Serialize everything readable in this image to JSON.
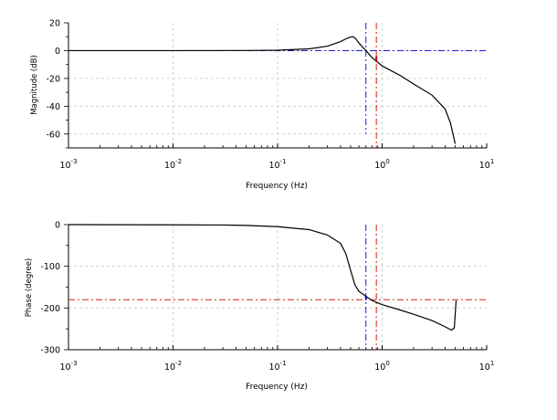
{
  "chart_data": [
    {
      "type": "line",
      "xscale": "log",
      "xlim": [
        0.001,
        10
      ],
      "ylim": [
        -70,
        20
      ],
      "xlabel": "Frequency (Hz)",
      "ylabel": "Magnitude (dB)",
      "grid": true,
      "x_ticks": [
        {
          "base": "10",
          "exp": "-3"
        },
        {
          "base": "10",
          "exp": "-2"
        },
        {
          "base": "10",
          "exp": "-1"
        },
        {
          "base": "10",
          "exp": "0"
        },
        {
          "base": "10",
          "exp": "1"
        }
      ],
      "y_ticks": [
        {
          "value": 20,
          "label": "20"
        },
        {
          "value": 0,
          "label": "0"
        },
        {
          "value": -20,
          "label": "-20"
        },
        {
          "value": -40,
          "label": "-40"
        },
        {
          "value": -60,
          "label": "-60"
        }
      ],
      "series": [
        {
          "color": "#000000",
          "points": [
            [
              0.001,
              0
            ],
            [
              0.01,
              0
            ],
            [
              0.05,
              0.1
            ],
            [
              0.1,
              0.3
            ],
            [
              0.2,
              1.3
            ],
            [
              0.3,
              3.2
            ],
            [
              0.4,
              6.5
            ],
            [
              0.45,
              8.5
            ],
            [
              0.5,
              9.8
            ],
            [
              0.53,
              10
            ],
            [
              0.56,
              8.5
            ],
            [
              0.6,
              5.5
            ],
            [
              0.65,
              2.5
            ],
            [
              0.7,
              0
            ],
            [
              0.8,
              -5
            ],
            [
              1,
              -11
            ],
            [
              1.5,
              -18
            ],
            [
              2,
              -24
            ],
            [
              3,
              -32
            ],
            [
              4,
              -42
            ],
            [
              4.5,
              -52
            ],
            [
              5,
              -67
            ]
          ]
        }
      ],
      "reference_lines": [
        {
          "orientation": "horizontal",
          "value": 0,
          "color": "#0000cc",
          "style": "dash-dot"
        },
        {
          "orientation": "vertical",
          "value": 0.7,
          "color": "#0000cc",
          "style": "dash-dot",
          "span": [
            -60,
            20
          ]
        },
        {
          "orientation": "vertical",
          "value": 0.88,
          "color": "#cc0000",
          "style": "dash-dot",
          "span": [
            -70,
            20
          ]
        }
      ],
      "margin_markers": [
        {
          "x": 0.88,
          "y_from": -4,
          "y_to": -8,
          "color": "#cc0000"
        }
      ]
    },
    {
      "type": "line",
      "xscale": "log",
      "xlim": [
        0.001,
        10
      ],
      "ylim": [
        -300,
        0
      ],
      "xlabel": "Frequency (Hz)",
      "ylabel": "Phase (degree)",
      "grid": true,
      "x_ticks": [
        {
          "base": "10",
          "exp": "-3"
        },
        {
          "base": "10",
          "exp": "-2"
        },
        {
          "base": "10",
          "exp": "-1"
        },
        {
          "base": "10",
          "exp": "0"
        },
        {
          "base": "10",
          "exp": "1"
        }
      ],
      "y_ticks": [
        {
          "value": 0,
          "label": "0"
        },
        {
          "value": -100,
          "label": "-100"
        },
        {
          "value": -200,
          "label": "-200"
        },
        {
          "value": -300,
          "label": "-300"
        }
      ],
      "series": [
        {
          "color": "#000000",
          "points": [
            [
              0.001,
              0
            ],
            [
              0.01,
              -0.5
            ],
            [
              0.03,
              -1
            ],
            [
              0.05,
              -2
            ],
            [
              0.1,
              -5
            ],
            [
              0.2,
              -12
            ],
            [
              0.3,
              -25
            ],
            [
              0.4,
              -45
            ],
            [
              0.45,
              -70
            ],
            [
              0.5,
              -110
            ],
            [
              0.55,
              -145
            ],
            [
              0.6,
              -160
            ],
            [
              0.7,
              -172
            ],
            [
              0.8,
              -182
            ],
            [
              1,
              -192
            ],
            [
              1.5,
              -205
            ],
            [
              2,
              -215
            ],
            [
              3,
              -230
            ],
            [
              4,
              -245
            ],
            [
              4.6,
              -253
            ],
            [
              4.9,
              -248
            ],
            [
              5.1,
              -182
            ]
          ]
        }
      ],
      "reference_lines": [
        {
          "orientation": "horizontal",
          "value": -180,
          "color": "#cc0000",
          "style": "dash-dot"
        },
        {
          "orientation": "vertical",
          "value": 0.7,
          "color": "#0000cc",
          "style": "dash-dot",
          "span": [
            -300,
            0
          ]
        },
        {
          "orientation": "vertical",
          "value": 0.88,
          "color": "#cc0000",
          "style": "dash-dot",
          "span": [
            -300,
            0
          ]
        }
      ],
      "margin_markers": [
        {
          "x": 0.7,
          "y_from": -172,
          "y_to": -180,
          "color": "#0000cc"
        }
      ]
    }
  ]
}
